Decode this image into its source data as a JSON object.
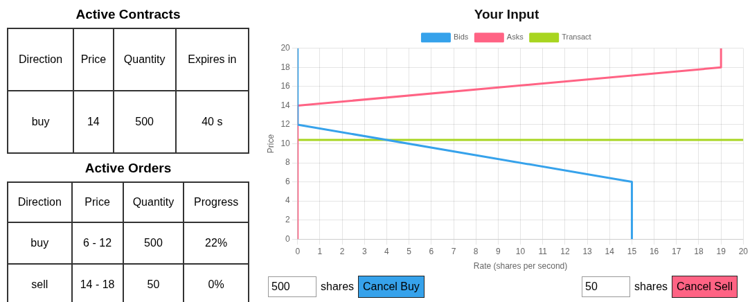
{
  "chart_data": [
    {
      "type": "other",
      "title": "Active Contracts",
      "categories": [
        "Direction",
        "Price",
        "Quantity",
        "Expires in"
      ],
      "cell_labels": [
        [
          "buy",
          "14",
          "500",
          "40 s"
        ]
      ]
    },
    {
      "type": "other",
      "title": "Active Orders",
      "categories": [
        "Direction",
        "Price",
        "Quantity",
        "Progress"
      ],
      "cell_labels": [
        [
          "buy",
          "6 - 12",
          "500",
          "22%"
        ],
        [
          "sell",
          "14 - 18",
          "50",
          "0%"
        ]
      ]
    },
    {
      "type": "line",
      "title": "Your Input",
      "xlabel": "Rate (shares per second)",
      "ylabel": "Price",
      "xlim": [
        0,
        20
      ],
      "xticks": [
        0,
        1,
        2,
        3,
        4,
        5,
        6,
        7,
        8,
        9,
        10,
        11,
        12,
        13,
        14,
        15,
        16,
        17,
        18,
        19,
        20
      ],
      "ylim": [
        0,
        20
      ],
      "yticks": [
        0,
        2,
        4,
        6,
        8,
        10,
        12,
        14,
        16,
        18,
        20
      ],
      "grid": true,
      "legend": "top",
      "marker": "none",
      "series": [
        {
          "name": "Bids",
          "color": "#36a2eb",
          "x": [
            0,
            0,
            15,
            15
          ],
          "values": [
            20,
            12,
            6,
            0
          ]
        },
        {
          "name": "Asks",
          "color": "#ff6384",
          "x": [
            0,
            0,
            19,
            19
          ],
          "values": [
            0,
            14,
            18,
            20
          ]
        },
        {
          "name": "Transact",
          "color": "#a8d520",
          "x": [
            0,
            20
          ],
          "values": [
            10.4,
            10.4
          ]
        }
      ],
      "annotations": [
        "500",
        "shares",
        "Cancel Buy",
        "50",
        "shares",
        "Cancel Sell"
      ]
    }
  ]
}
